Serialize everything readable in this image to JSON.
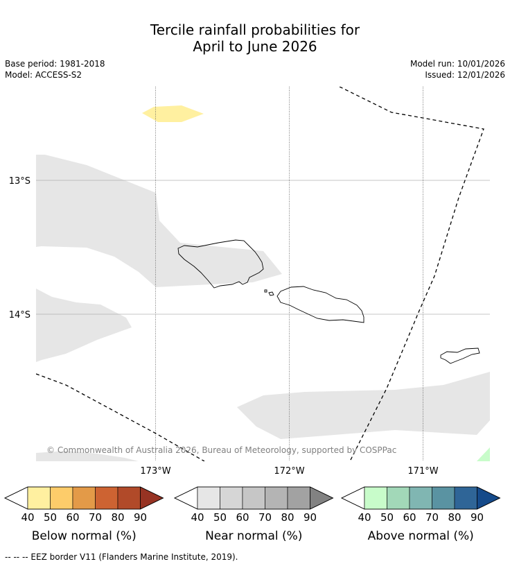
{
  "title_line1": "Tercile rainfall probabilities for",
  "title_line2": "April to June 2026",
  "meta": {
    "base_period": "Base period: 1981-2018",
    "model": "Model: ACCESS-S2",
    "model_run": "Model run: 10/01/2026",
    "issued": "Issued: 12/01/2026"
  },
  "map": {
    "lat_labels": [
      "13°S",
      "14°S"
    ],
    "lon_labels": [
      "173°W",
      "172°W",
      "171°W"
    ],
    "copyright": "© Commonwealth of Australia 2026, Bureau of Meteorology, supported by COSPPac"
  },
  "legends": [
    {
      "title": "Below normal (%)",
      "ticks": [
        "40",
        "50",
        "60",
        "70",
        "80",
        "90"
      ],
      "colors": [
        "#ffffff",
        "#fff0a0",
        "#fdcc6a",
        "#e39a48",
        "#cd6332",
        "#b14a29",
        "#973323"
      ]
    },
    {
      "title": "Near normal (%)",
      "ticks": [
        "40",
        "50",
        "60",
        "70",
        "80",
        "90"
      ],
      "colors": [
        "#ffffff",
        "#e6e6e6",
        "#d6d6d6",
        "#c6c6c6",
        "#b4b4b4",
        "#a2a2a2",
        "#828282"
      ]
    },
    {
      "title": "Above normal (%)",
      "ticks": [
        "40",
        "50",
        "60",
        "70",
        "80",
        "90"
      ],
      "colors": [
        "#ffffff",
        "#c8fcca",
        "#a2d8b8",
        "#80b6b2",
        "#5a93a2",
        "#2f6597",
        "#154a8a"
      ]
    }
  ],
  "footer": "--  --  -- EEZ border V11 (Flanders Marine Institute, 2019)."
}
